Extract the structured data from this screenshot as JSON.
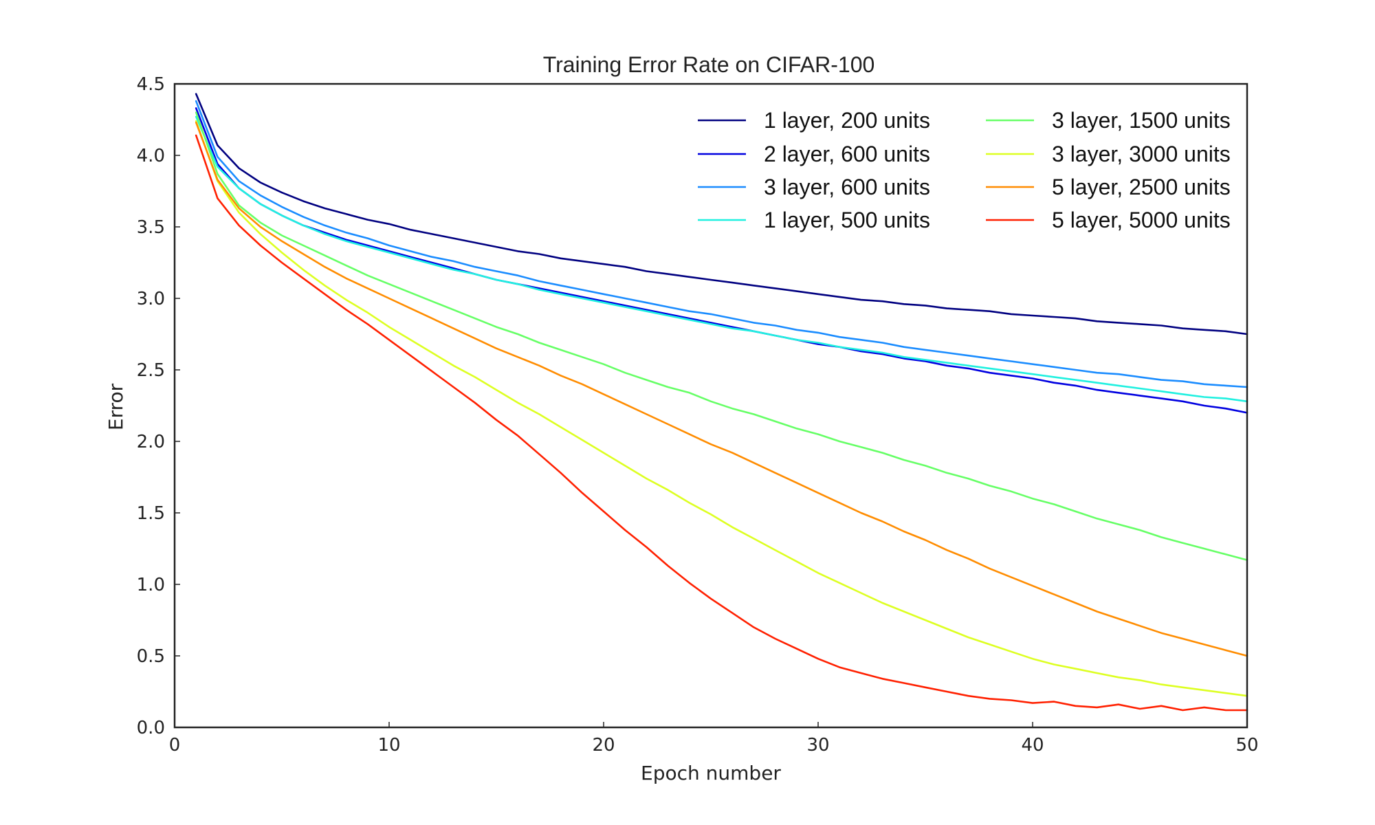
{
  "chart_data": {
    "type": "line",
    "title": "Training Error Rate on CIFAR-100",
    "xlabel": "Epoch number",
    "ylabel": "Error",
    "xlim": [
      0,
      50
    ],
    "ylim": [
      0,
      4.5
    ],
    "xticks": [
      0,
      10,
      20,
      30,
      40,
      50
    ],
    "xtick_labels": [
      "0",
      "10",
      "20",
      "30",
      "40",
      "50"
    ],
    "yticks": [
      0.0,
      0.5,
      1.0,
      1.5,
      2.0,
      2.5,
      3.0,
      3.5,
      4.0,
      4.5
    ],
    "ytick_labels": [
      "0.0",
      "0.5",
      "1.0",
      "1.5",
      "2.0",
      "2.5",
      "3.0",
      "3.5",
      "4.0",
      "4.5"
    ],
    "grid": false,
    "legend_position": "top-right",
    "x": [
      1,
      2,
      3,
      4,
      5,
      6,
      7,
      8,
      9,
      10,
      11,
      12,
      13,
      14,
      15,
      16,
      17,
      18,
      19,
      20,
      21,
      22,
      23,
      24,
      25,
      26,
      27,
      28,
      29,
      30,
      31,
      32,
      33,
      34,
      35,
      36,
      37,
      38,
      39,
      40,
      41,
      42,
      43,
      44,
      45,
      46,
      47,
      48,
      49,
      50
    ],
    "series": [
      {
        "name": "1 layer, 200 units",
        "color": "#000080",
        "values": [
          4.43,
          4.07,
          3.91,
          3.81,
          3.74,
          3.68,
          3.63,
          3.59,
          3.55,
          3.52,
          3.48,
          3.45,
          3.42,
          3.39,
          3.36,
          3.33,
          3.31,
          3.28,
          3.26,
          3.24,
          3.22,
          3.19,
          3.17,
          3.15,
          3.13,
          3.11,
          3.09,
          3.07,
          3.05,
          3.03,
          3.01,
          2.99,
          2.98,
          2.96,
          2.95,
          2.93,
          2.92,
          2.91,
          2.89,
          2.88,
          2.87,
          2.86,
          2.84,
          2.83,
          2.82,
          2.81,
          2.79,
          2.78,
          2.77,
          2.75
        ]
      },
      {
        "name": "2 layer, 600 units",
        "color": "#0000e0",
        "values": [
          4.33,
          3.94,
          3.77,
          3.66,
          3.58,
          3.51,
          3.46,
          3.41,
          3.37,
          3.33,
          3.29,
          3.25,
          3.21,
          3.17,
          3.13,
          3.1,
          3.07,
          3.04,
          3.01,
          2.98,
          2.95,
          2.92,
          2.89,
          2.86,
          2.83,
          2.8,
          2.77,
          2.74,
          2.71,
          2.68,
          2.66,
          2.63,
          2.61,
          2.58,
          2.56,
          2.53,
          2.51,
          2.48,
          2.46,
          2.44,
          2.41,
          2.39,
          2.36,
          2.34,
          2.32,
          2.3,
          2.28,
          2.25,
          2.23,
          2.2
        ]
      },
      {
        "name": "3 layer, 600 units",
        "color": "#1a8cff",
        "values": [
          4.38,
          3.99,
          3.82,
          3.72,
          3.64,
          3.57,
          3.51,
          3.46,
          3.42,
          3.37,
          3.33,
          3.29,
          3.26,
          3.22,
          3.19,
          3.16,
          3.12,
          3.09,
          3.06,
          3.03,
          3.0,
          2.97,
          2.94,
          2.91,
          2.89,
          2.86,
          2.83,
          2.81,
          2.78,
          2.76,
          2.73,
          2.71,
          2.69,
          2.66,
          2.64,
          2.62,
          2.6,
          2.58,
          2.56,
          2.54,
          2.52,
          2.5,
          2.48,
          2.47,
          2.45,
          2.43,
          2.42,
          2.4,
          2.39,
          2.38
        ]
      },
      {
        "name": "1 layer, 500 units",
        "color": "#20f0e0",
        "values": [
          4.27,
          3.92,
          3.77,
          3.66,
          3.58,
          3.51,
          3.45,
          3.4,
          3.36,
          3.32,
          3.28,
          3.24,
          3.2,
          3.17,
          3.13,
          3.1,
          3.06,
          3.03,
          3.0,
          2.97,
          2.94,
          2.91,
          2.88,
          2.85,
          2.82,
          2.79,
          2.77,
          2.74,
          2.71,
          2.69,
          2.66,
          2.64,
          2.62,
          2.59,
          2.57,
          2.55,
          2.53,
          2.51,
          2.49,
          2.47,
          2.45,
          2.43,
          2.41,
          2.39,
          2.37,
          2.35,
          2.33,
          2.31,
          2.3,
          2.28
        ]
      },
      {
        "name": "3 layer, 1500 units",
        "color": "#66ff66",
        "values": [
          4.3,
          3.87,
          3.65,
          3.53,
          3.44,
          3.37,
          3.3,
          3.23,
          3.16,
          3.1,
          3.04,
          2.98,
          2.92,
          2.86,
          2.8,
          2.75,
          2.69,
          2.64,
          2.59,
          2.54,
          2.48,
          2.43,
          2.38,
          2.34,
          2.28,
          2.23,
          2.19,
          2.14,
          2.09,
          2.05,
          2.0,
          1.96,
          1.92,
          1.87,
          1.83,
          1.78,
          1.74,
          1.69,
          1.65,
          1.6,
          1.56,
          1.51,
          1.46,
          1.42,
          1.38,
          1.33,
          1.29,
          1.25,
          1.21,
          1.17
        ]
      },
      {
        "name": "3 layer, 3000 units",
        "color": "#ddff22",
        "values": [
          4.24,
          3.82,
          3.6,
          3.45,
          3.32,
          3.2,
          3.09,
          2.99,
          2.9,
          2.8,
          2.71,
          2.62,
          2.53,
          2.45,
          2.36,
          2.27,
          2.19,
          2.1,
          2.01,
          1.92,
          1.83,
          1.74,
          1.66,
          1.57,
          1.49,
          1.4,
          1.32,
          1.24,
          1.16,
          1.08,
          1.01,
          0.94,
          0.87,
          0.81,
          0.75,
          0.69,
          0.63,
          0.58,
          0.53,
          0.48,
          0.44,
          0.41,
          0.38,
          0.35,
          0.33,
          0.3,
          0.28,
          0.26,
          0.24,
          0.22
        ]
      },
      {
        "name": "5 layer, 2500 units",
        "color": "#ff8c00",
        "values": [
          4.23,
          3.83,
          3.63,
          3.5,
          3.4,
          3.31,
          3.22,
          3.14,
          3.07,
          3.0,
          2.93,
          2.86,
          2.79,
          2.72,
          2.65,
          2.59,
          2.53,
          2.46,
          2.4,
          2.33,
          2.26,
          2.19,
          2.12,
          2.05,
          1.98,
          1.92,
          1.85,
          1.78,
          1.71,
          1.64,
          1.57,
          1.5,
          1.44,
          1.37,
          1.31,
          1.24,
          1.18,
          1.11,
          1.05,
          0.99,
          0.93,
          0.87,
          0.81,
          0.76,
          0.71,
          0.66,
          0.62,
          0.58,
          0.54,
          0.5
        ]
      },
      {
        "name": "5 layer, 5000 units",
        "color": "#ff2000",
        "values": [
          4.14,
          3.7,
          3.51,
          3.37,
          3.25,
          3.14,
          3.03,
          2.92,
          2.82,
          2.71,
          2.6,
          2.49,
          2.38,
          2.27,
          2.15,
          2.04,
          1.91,
          1.78,
          1.64,
          1.51,
          1.38,
          1.26,
          1.13,
          1.01,
          0.9,
          0.8,
          0.7,
          0.62,
          0.55,
          0.48,
          0.42,
          0.38,
          0.34,
          0.31,
          0.28,
          0.25,
          0.22,
          0.2,
          0.19,
          0.17,
          0.18,
          0.15,
          0.14,
          0.16,
          0.13,
          0.15,
          0.12,
          0.14,
          0.12,
          0.12
        ]
      }
    ]
  }
}
